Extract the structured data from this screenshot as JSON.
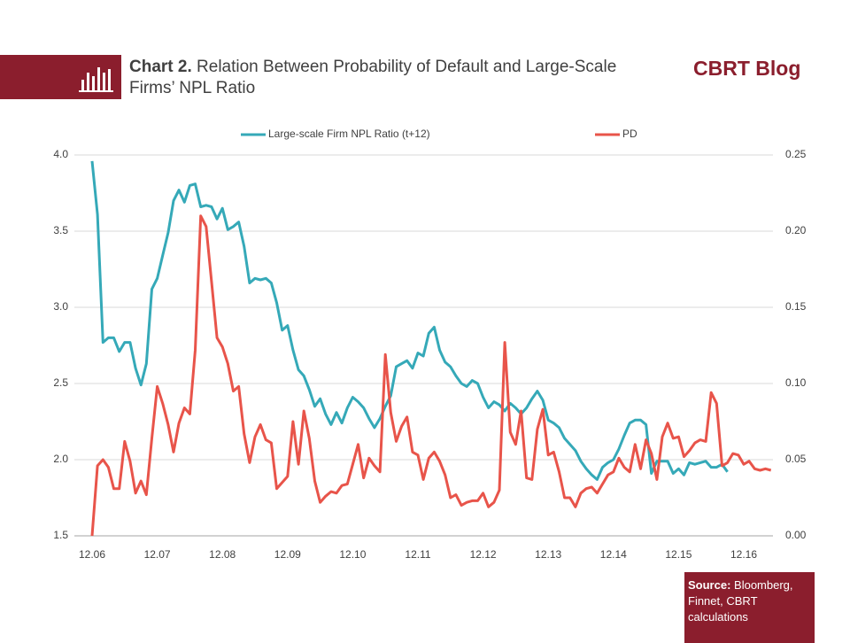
{
  "header": {
    "label": "Chart 2.",
    "title": "Relation Between Probability of Default and Large-Scale Firms’ NPL Ratio",
    "brand": "CBRT Blog"
  },
  "chart_data": {
    "type": "line",
    "categories": [
      "12.06",
      null,
      null,
      null,
      null,
      null,
      null,
      null,
      null,
      null,
      null,
      null,
      "12.07",
      null,
      null,
      null,
      null,
      null,
      null,
      null,
      null,
      null,
      null,
      null,
      "12.08",
      null,
      null,
      null,
      null,
      null,
      null,
      null,
      null,
      null,
      null,
      null,
      "12.09",
      null,
      null,
      null,
      null,
      null,
      null,
      null,
      null,
      null,
      null,
      null,
      "12.10",
      null,
      null,
      null,
      null,
      null,
      null,
      null,
      null,
      null,
      null,
      null,
      "12.11",
      null,
      null,
      null,
      null,
      null,
      null,
      null,
      null,
      null,
      null,
      null,
      "12.12",
      null,
      null,
      null,
      null,
      null,
      null,
      null,
      null,
      null,
      null,
      null,
      "12.13",
      null,
      null,
      null,
      null,
      null,
      null,
      null,
      null,
      null,
      null,
      null,
      "12.14",
      null,
      null,
      null,
      null,
      null,
      null,
      null,
      null,
      null,
      null,
      null,
      "12.15",
      null,
      null,
      null,
      null,
      null,
      null,
      null,
      null,
      null,
      null,
      null,
      "12.16",
      null,
      null,
      null,
      null,
      null
    ],
    "series": [
      {
        "name": "Large-scale Firm NPL Ratio (t+12)",
        "color": "#35a9b8",
        "values": [
          3.96,
          3.61,
          2.77,
          2.8,
          2.8,
          2.71,
          2.77,
          2.77,
          2.6,
          2.49,
          2.63,
          3.12,
          3.19,
          3.34,
          3.49,
          3.7,
          3.77,
          3.69,
          3.8,
          3.81,
          3.66,
          3.67,
          3.66,
          3.58,
          3.65,
          3.51,
          3.53,
          3.56,
          3.4,
          3.16,
          3.19,
          3.18,
          3.19,
          3.16,
          3.03,
          2.85,
          2.88,
          2.72,
          2.59,
          2.55,
          2.46,
          2.35,
          2.4,
          2.3,
          2.23,
          2.31,
          2.24,
          2.34,
          2.41,
          2.38,
          2.34,
          2.27,
          2.21,
          2.27,
          2.35,
          2.42,
          2.61,
          2.63,
          2.65,
          2.6,
          2.7,
          2.68,
          2.83,
          2.87,
          2.72,
          2.64,
          2.61,
          2.55,
          2.5,
          2.48,
          2.52,
          2.5,
          2.41,
          2.34,
          2.38,
          2.36,
          2.32,
          2.37,
          2.34,
          2.3,
          2.34,
          2.4,
          2.45,
          2.39,
          2.26,
          2.24,
          2.21,
          2.14,
          2.1,
          2.06,
          1.99,
          1.94,
          1.9,
          1.87,
          1.95,
          1.98,
          2.0,
          2.07,
          2.16,
          2.24,
          2.26,
          2.26,
          2.23,
          1.91,
          1.99,
          1.99,
          1.99,
          1.91,
          1.94,
          1.9,
          1.98,
          1.97,
          1.98,
          1.99,
          1.95,
          1.95,
          1.97,
          1.92,
          null,
          null,
          null,
          null,
          null,
          null,
          null,
          null
        ]
      },
      {
        "name": "PD",
        "color": "#e8544a",
        "axis": "y2",
        "values": [
          0.0,
          0.046,
          0.05,
          0.045,
          0.031,
          0.031,
          0.062,
          0.049,
          0.028,
          0.036,
          0.027,
          0.064,
          0.098,
          0.087,
          0.073,
          0.055,
          0.074,
          0.084,
          0.08,
          0.122,
          0.21,
          0.203,
          0.167,
          0.13,
          0.124,
          0.113,
          0.095,
          0.098,
          0.067,
          0.048,
          0.065,
          0.073,
          0.063,
          0.061,
          0.031,
          0.035,
          0.039,
          0.075,
          0.047,
          0.082,
          0.064,
          0.036,
          0.022,
          0.026,
          0.029,
          0.028,
          0.033,
          0.034,
          0.047,
          0.06,
          0.038,
          0.051,
          0.046,
          0.042,
          0.119,
          0.081,
          0.062,
          0.072,
          0.078,
          0.055,
          0.053,
          0.037,
          0.051,
          0.055,
          0.049,
          0.04,
          0.025,
          0.027,
          0.02,
          0.022,
          0.023,
          0.023,
          0.028,
          0.019,
          0.022,
          0.03,
          0.127,
          0.068,
          0.06,
          0.082,
          0.038,
          0.037,
          0.07,
          0.083,
          0.053,
          0.055,
          0.042,
          0.025,
          0.025,
          0.019,
          0.028,
          0.031,
          0.032,
          0.028,
          0.034,
          0.04,
          0.042,
          0.051,
          0.045,
          0.042,
          0.06,
          0.044,
          0.063,
          0.054,
          0.037,
          0.065,
          0.074,
          0.064,
          0.065,
          0.052,
          0.056,
          0.061,
          0.063,
          0.062,
          0.094,
          0.087,
          0.046,
          0.048,
          0.054,
          0.053,
          0.047,
          0.049,
          0.044,
          0.043,
          0.044,
          0.043
        ]
      }
    ],
    "ylim": [
      1.5,
      4.0
    ],
    "yticks": [
      1.5,
      {
        "value": 2,
        "label": "2.0"
      },
      2.5,
      {
        "value": 3,
        "label": "3.0"
      },
      3.5,
      {
        "value": 4,
        "label": "4.0"
      }
    ],
    "y2lim": [
      0,
      0.25
    ],
    "y2ticks": [
      {
        "value": 0,
        "label": "0.00"
      },
      0.05,
      {
        "value": 0.1,
        "label": "0.10"
      },
      0.15,
      {
        "value": 0.2,
        "label": "0.20"
      },
      0.25
    ],
    "grid": true,
    "legend": "top"
  },
  "source": {
    "label": "Source:",
    "text": "Bloomberg, Finnet, CBRT calculations"
  }
}
